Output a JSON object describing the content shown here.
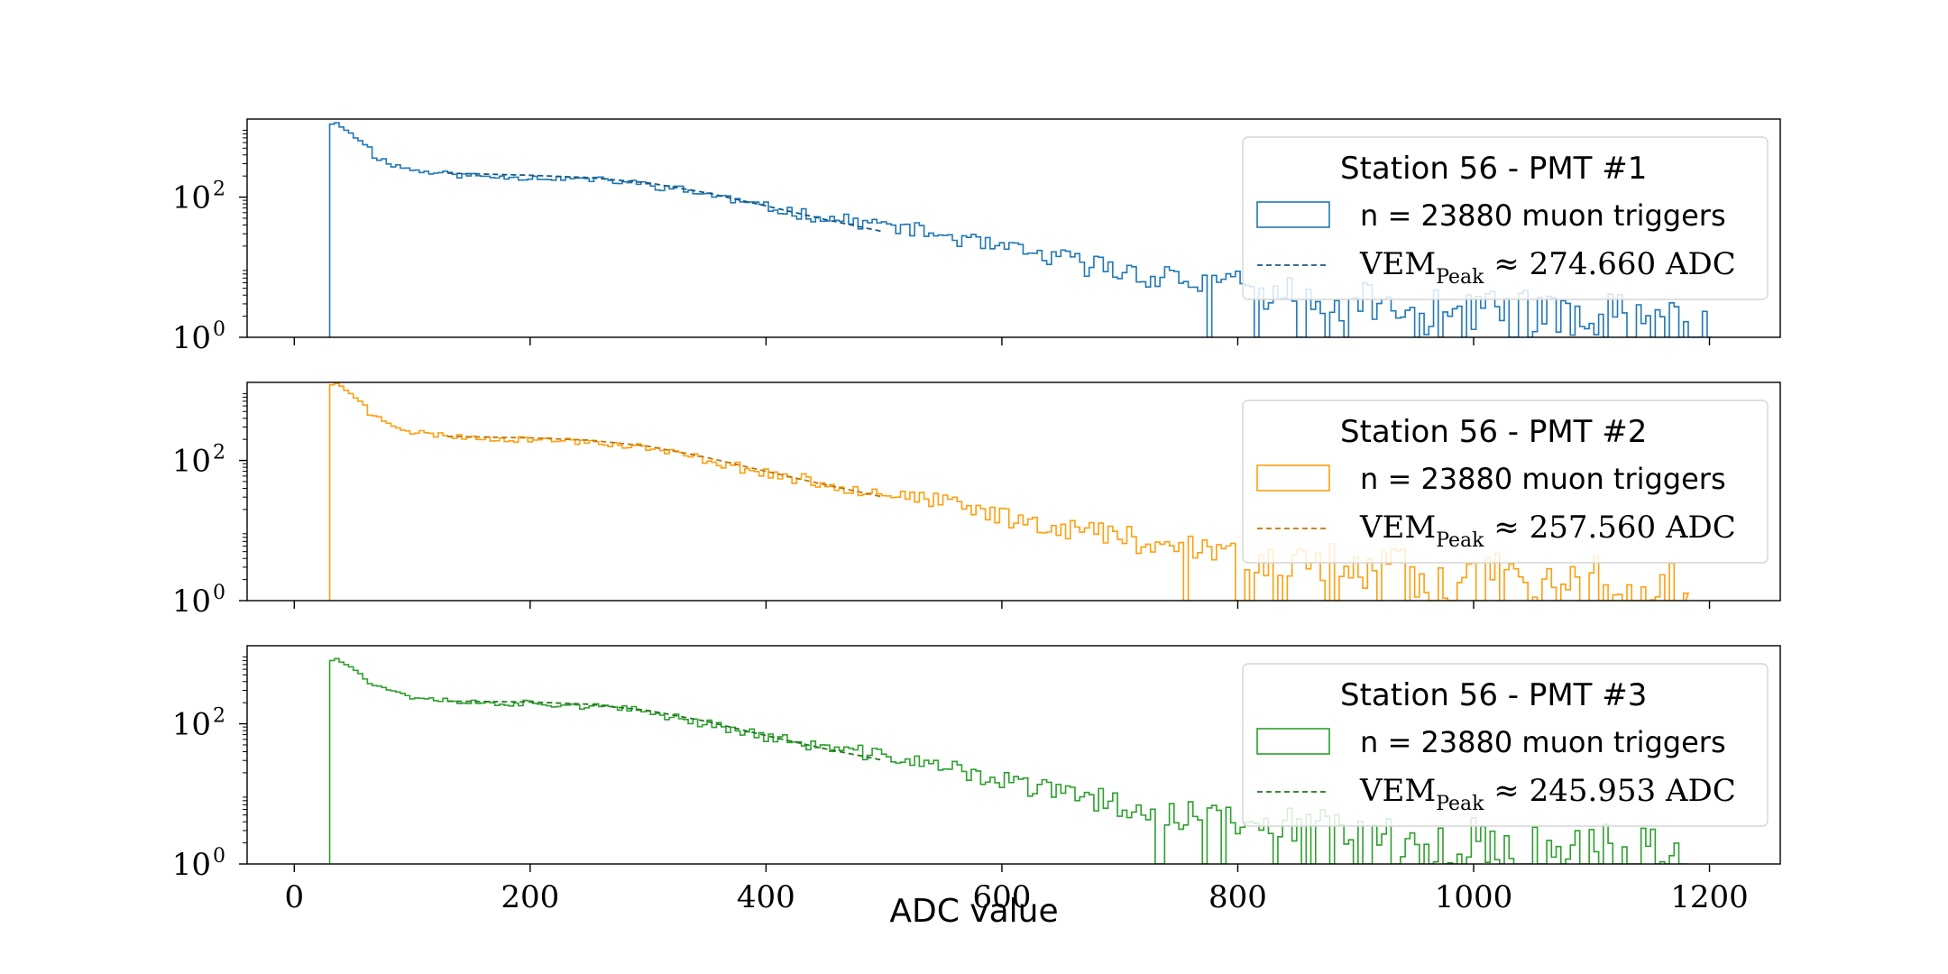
{
  "chart_data": [
    {
      "type": "histogram",
      "xlabel": "",
      "xlim": [
        -40,
        1260
      ],
      "ylim": [
        1,
        1300
      ],
      "yscale": "log",
      "yticks": [
        {
          "base": "10",
          "exp": "0",
          "value": 1
        },
        {
          "base": "10",
          "exp": "2",
          "value": 100
        }
      ],
      "color": "#1f77b4",
      "legend": {
        "placement": "upper-right",
        "title": "Station 56 - PMT #1",
        "hist_label": "n = 23880 muon triggers",
        "fit_label_main": "VEM",
        "fit_label_sub": "Peak",
        "fit_label_rest": "≈ 274.660 ADC"
      },
      "hist": {
        "x_start": 30,
        "x_end": 1200,
        "bin_width": 4,
        "noise_seed": 11,
        "envelope": [
          [
            30,
            1150
          ],
          [
            34,
            1000
          ],
          [
            40,
            820
          ],
          [
            50,
            560
          ],
          [
            60,
            420
          ],
          [
            80,
            300
          ],
          [
            100,
            240
          ],
          [
            150,
            200
          ],
          [
            200,
            190
          ],
          [
            250,
            180
          ],
          [
            300,
            150
          ],
          [
            350,
            110
          ],
          [
            400,
            70
          ],
          [
            450,
            50
          ],
          [
            500,
            40
          ],
          [
            550,
            28
          ],
          [
            600,
            18
          ],
          [
            700,
            9
          ],
          [
            800,
            5
          ],
          [
            900,
            3
          ],
          [
            1000,
            2
          ],
          [
            1100,
            1.5
          ],
          [
            1200,
            1.2
          ]
        ],
        "bins": [
          [
            30,
            1100
          ],
          [
            34,
            1150
          ],
          [
            38,
            1000
          ],
          [
            42,
            900
          ],
          [
            46,
            820
          ],
          [
            50,
            700
          ],
          [
            54,
            640
          ],
          [
            58,
            560
          ],
          [
            62,
            520
          ]
        ]
      },
      "fit": {
        "x_start": 130,
        "x_end": 500,
        "points": [
          [
            130,
            220
          ],
          [
            200,
            205
          ],
          [
            250,
            190
          ],
          [
            300,
            160
          ],
          [
            350,
            115
          ],
          [
            400,
            75
          ],
          [
            450,
            48
          ],
          [
            500,
            32
          ]
        ]
      }
    },
    {
      "type": "histogram",
      "xlabel": "",
      "xlim": [
        -40,
        1260
      ],
      "ylim": [
        1,
        1300
      ],
      "yscale": "log",
      "yticks": [
        {
          "base": "10",
          "exp": "0",
          "value": 1
        },
        {
          "base": "10",
          "exp": "2",
          "value": 100
        }
      ],
      "color": "#ff9f0e",
      "legend": {
        "placement": "upper-right",
        "title": "Station 56 - PMT #2",
        "hist_label": "n = 23880 muon triggers",
        "fit_label_main": "VEM",
        "fit_label_sub": "Peak",
        "fit_label_rest": "≈ 257.560 ADC"
      },
      "hist": {
        "x_start": 30,
        "x_end": 1180,
        "bin_width": 4,
        "noise_seed": 23,
        "envelope": [
          [
            30,
            1250
          ],
          [
            34,
            1150
          ],
          [
            40,
            950
          ],
          [
            50,
            650
          ],
          [
            60,
            480
          ],
          [
            80,
            330
          ],
          [
            100,
            250
          ],
          [
            150,
            210
          ],
          [
            200,
            200
          ],
          [
            250,
            185
          ],
          [
            300,
            150
          ],
          [
            350,
            100
          ],
          [
            400,
            65
          ],
          [
            450,
            45
          ],
          [
            500,
            35
          ],
          [
            550,
            25
          ],
          [
            600,
            16
          ],
          [
            700,
            8
          ],
          [
            800,
            4.5
          ],
          [
            900,
            3
          ],
          [
            1000,
            2
          ],
          [
            1100,
            1.5
          ],
          [
            1180,
            1.2
          ]
        ],
        "bins": [
          [
            30,
            1200
          ],
          [
            34,
            1250
          ],
          [
            38,
            1150
          ],
          [
            42,
            1000
          ],
          [
            46,
            900
          ],
          [
            50,
            780
          ],
          [
            54,
            700
          ],
          [
            58,
            620
          ]
        ]
      },
      "fit": {
        "x_start": 130,
        "x_end": 500,
        "points": [
          [
            130,
            220
          ],
          [
            200,
            210
          ],
          [
            250,
            195
          ],
          [
            300,
            160
          ],
          [
            350,
            110
          ],
          [
            400,
            70
          ],
          [
            450,
            45
          ],
          [
            500,
            30
          ]
        ]
      }
    },
    {
      "type": "histogram",
      "xlabel": "ADC value",
      "xlim": [
        -40,
        1260
      ],
      "ylim": [
        1,
        1300
      ],
      "yscale": "log",
      "yticks": [
        {
          "base": "10",
          "exp": "0",
          "value": 1
        },
        {
          "base": "10",
          "exp": "2",
          "value": 100
        }
      ],
      "xticks": [
        0,
        200,
        400,
        600,
        800,
        1000,
        1200
      ],
      "color": "#2ca02c",
      "legend": {
        "placement": "upper-right",
        "title": "Station 56 - PMT #3",
        "hist_label": "n = 23880 muon triggers",
        "fit_label_main": "VEM",
        "fit_label_sub": "Peak",
        "fit_label_rest": "≈ 245.953 ADC"
      },
      "hist": {
        "x_start": 30,
        "x_end": 1180,
        "bin_width": 4,
        "noise_seed": 37,
        "envelope": [
          [
            30,
            800
          ],
          [
            34,
            850
          ],
          [
            40,
            720
          ],
          [
            50,
            560
          ],
          [
            60,
            420
          ],
          [
            80,
            300
          ],
          [
            100,
            240
          ],
          [
            150,
            200
          ],
          [
            200,
            195
          ],
          [
            250,
            180
          ],
          [
            300,
            145
          ],
          [
            350,
            100
          ],
          [
            400,
            65
          ],
          [
            450,
            45
          ],
          [
            500,
            35
          ],
          [
            550,
            24
          ],
          [
            600,
            15
          ],
          [
            700,
            7
          ],
          [
            800,
            4
          ],
          [
            900,
            2.8
          ],
          [
            1000,
            2
          ],
          [
            1100,
            1.5
          ],
          [
            1180,
            1.2
          ]
        ],
        "bins": [
          [
            30,
            800
          ],
          [
            34,
            850
          ],
          [
            38,
            760
          ],
          [
            42,
            700
          ],
          [
            46,
            650
          ],
          [
            50,
            580
          ],
          [
            54,
            520
          ]
        ]
      },
      "fit": {
        "x_start": 130,
        "x_end": 500,
        "points": [
          [
            130,
            210
          ],
          [
            200,
            205
          ],
          [
            250,
            190
          ],
          [
            300,
            155
          ],
          [
            350,
            108
          ],
          [
            400,
            68
          ],
          [
            450,
            44
          ],
          [
            500,
            30
          ]
        ]
      }
    }
  ]
}
